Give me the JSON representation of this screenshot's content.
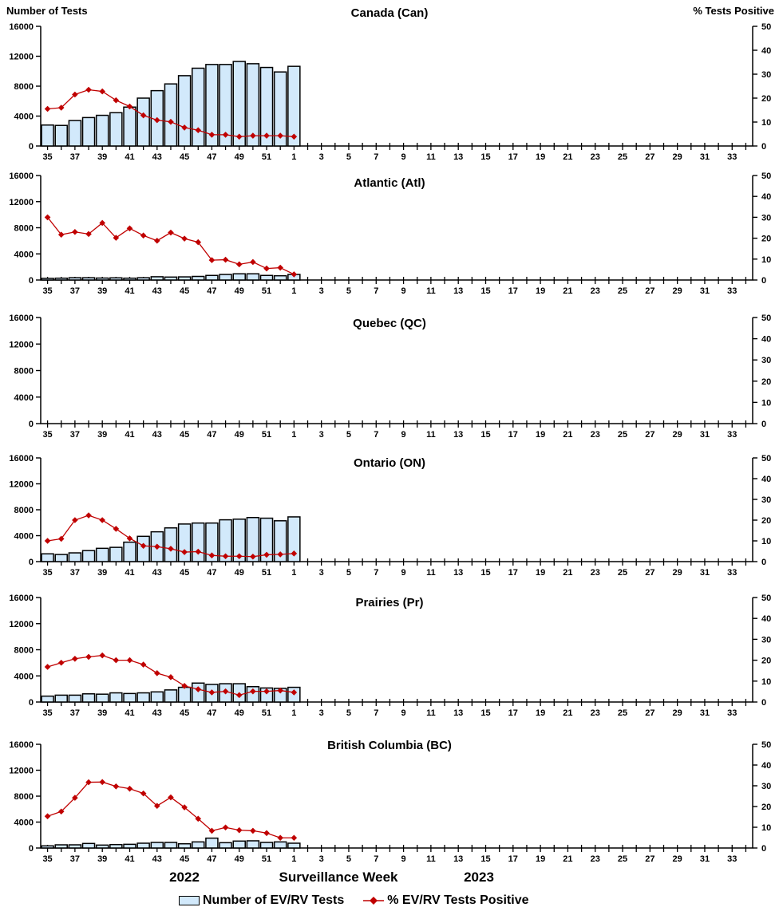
{
  "header": {
    "left_label": "Number of Tests",
    "right_label": "% Tests Positive"
  },
  "footer": {
    "year_left": "2022",
    "axis_label": "Surveillance Week",
    "year_right": "2023"
  },
  "legend": {
    "bar_label": "Number of EV/RV Tests",
    "line_label": "% EV/RV Tests Positive"
  },
  "colors": {
    "bar_fill": "#D2E9FB",
    "bar_stroke": "#000000",
    "line": "#C00000",
    "marker": "#C00000",
    "axis": "#000000",
    "text": "#000000"
  },
  "chart_data": {
    "type": "bar+line",
    "x_categories": [
      "35",
      "36",
      "37",
      "38",
      "39",
      "40",
      "41",
      "42",
      "43",
      "44",
      "45",
      "46",
      "47",
      "48",
      "49",
      "50",
      "51",
      "52",
      "1",
      "2",
      "3",
      "4",
      "5",
      "6",
      "7",
      "8",
      "9",
      "10",
      "11",
      "12",
      "13",
      "14",
      "15",
      "16",
      "17",
      "18",
      "19",
      "20",
      "21",
      "22",
      "23",
      "24",
      "25",
      "26",
      "27",
      "28",
      "29",
      "30",
      "31",
      "32",
      "33",
      "34"
    ],
    "x_labeled_ticks": [
      "35",
      "37",
      "39",
      "41",
      "43",
      "45",
      "47",
      "49",
      "51",
      "1",
      "3",
      "5",
      "7",
      "9",
      "11",
      "13",
      "15",
      "17",
      "19",
      "21",
      "23",
      "25",
      "27",
      "29",
      "31",
      "33"
    ],
    "xlabel": "Surveillance Week",
    "y_left": {
      "label": "Number of Tests",
      "ticks": [
        0,
        4000,
        8000,
        12000,
        16000
      ],
      "lim": [
        0,
        16000
      ]
    },
    "y_right": {
      "label": "% Tests Positive",
      "ticks": [
        0,
        10,
        20,
        30,
        40,
        50
      ],
      "lim": [
        0,
        50
      ]
    },
    "grid": false,
    "legend_position": "bottom",
    "panels": [
      {
        "title": "Canada (Can)",
        "series": [
          {
            "name": "Number of EV/RV Tests",
            "type": "bar",
            "axis": "left",
            "values": [
              2800,
              2750,
              3400,
              3800,
              4100,
              4450,
              5200,
              6400,
              7400,
              8300,
              9400,
              10400,
              10900,
              10900,
              11300,
              11000,
              10500,
              9900,
              10650
            ]
          },
          {
            "name": "% EV/RV Tests Positive",
            "type": "line",
            "axis": "right",
            "values": [
              15.5,
              16,
              21.5,
              23.5,
              22.8,
              19.1,
              16.5,
              12.8,
              10.8,
              10.1,
              7.7,
              6.6,
              4.7,
              4.7,
              3.9,
              4.3,
              4.3,
              4.3,
              3.9
            ]
          }
        ]
      },
      {
        "title": "Atlantic (Atl)",
        "series": [
          {
            "name": "Number of EV/RV Tests",
            "type": "bar",
            "axis": "left",
            "values": [
              250,
              280,
              350,
              350,
              300,
              330,
              280,
              350,
              500,
              450,
              480,
              550,
              700,
              850,
              950,
              950,
              700,
              650,
              850
            ]
          },
          {
            "name": "% EV/RV Tests Positive",
            "type": "line",
            "axis": "right",
            "values": [
              30,
              21.7,
              23,
              22,
              27.3,
              20.2,
              24.7,
              21.3,
              18.8,
              22.7,
              19.8,
              18.1,
              9.5,
              9.7,
              7.5,
              8.6,
              5.5,
              5.9,
              2.7
            ]
          }
        ]
      },
      {
        "title": "Quebec (QC)",
        "series": [
          {
            "name": "Number of EV/RV Tests",
            "type": "bar",
            "axis": "left",
            "values": []
          },
          {
            "name": "% EV/RV Tests Positive",
            "type": "line",
            "axis": "right",
            "values": []
          }
        ]
      },
      {
        "title": "Ontario (ON)",
        "series": [
          {
            "name": "Number of EV/RV Tests",
            "type": "bar",
            "axis": "left",
            "values": [
              1200,
              1100,
              1350,
              1700,
              2050,
              2200,
              3000,
              3900,
              4600,
              5200,
              5800,
              5950,
              5950,
              6450,
              6550,
              6800,
              6700,
              6300,
              6900
            ]
          },
          {
            "name": "% EV/RV Tests Positive",
            "type": "line",
            "axis": "right",
            "values": [
              10,
              11,
              20,
              22.3,
              20,
              15.8,
              11.2,
              7.6,
              7.2,
              6.2,
              4.6,
              4.8,
              3.0,
              2.6,
              2.6,
              2.4,
              3.3,
              3.5,
              3.9
            ]
          }
        ]
      },
      {
        "title": "Prairies (Pr)",
        "series": [
          {
            "name": "Number of EV/RV Tests",
            "type": "bar",
            "axis": "left",
            "values": [
              900,
              1050,
              1050,
              1250,
              1200,
              1400,
              1300,
              1400,
              1550,
              1850,
              2250,
              2900,
              2700,
              2800,
              2800,
              2350,
              2150,
              2100,
              2250
            ]
          },
          {
            "name": "% EV/RV Tests Positive",
            "type": "line",
            "axis": "right",
            "values": [
              16.8,
              18.8,
              20.7,
              21.6,
              22.3,
              20,
              20,
              17.9,
              13.8,
              11.9,
              7.7,
              6.1,
              4.6,
              5.1,
              3.3,
              5.1,
              5.1,
              5.5,
              4.6
            ]
          }
        ]
      },
      {
        "title": "British Columbia (BC)",
        "series": [
          {
            "name": "Number of EV/RV Tests",
            "type": "bar",
            "axis": "left",
            "values": [
              330,
              490,
              490,
              700,
              450,
              530,
              570,
              740,
              860,
              860,
              650,
              940,
              1520,
              820,
              1070,
              1110,
              860,
              940,
              740
            ]
          },
          {
            "name": "% EV/RV Tests Positive",
            "type": "line",
            "axis": "right",
            "values": [
              15.3,
              17.6,
              24.2,
              31.7,
              31.8,
              29.7,
              28.6,
              26.3,
              20.3,
              24.4,
              19.6,
              14.1,
              8.3,
              9.9,
              8.6,
              8.3,
              7.2,
              4.9,
              4.9
            ]
          }
        ]
      }
    ]
  }
}
